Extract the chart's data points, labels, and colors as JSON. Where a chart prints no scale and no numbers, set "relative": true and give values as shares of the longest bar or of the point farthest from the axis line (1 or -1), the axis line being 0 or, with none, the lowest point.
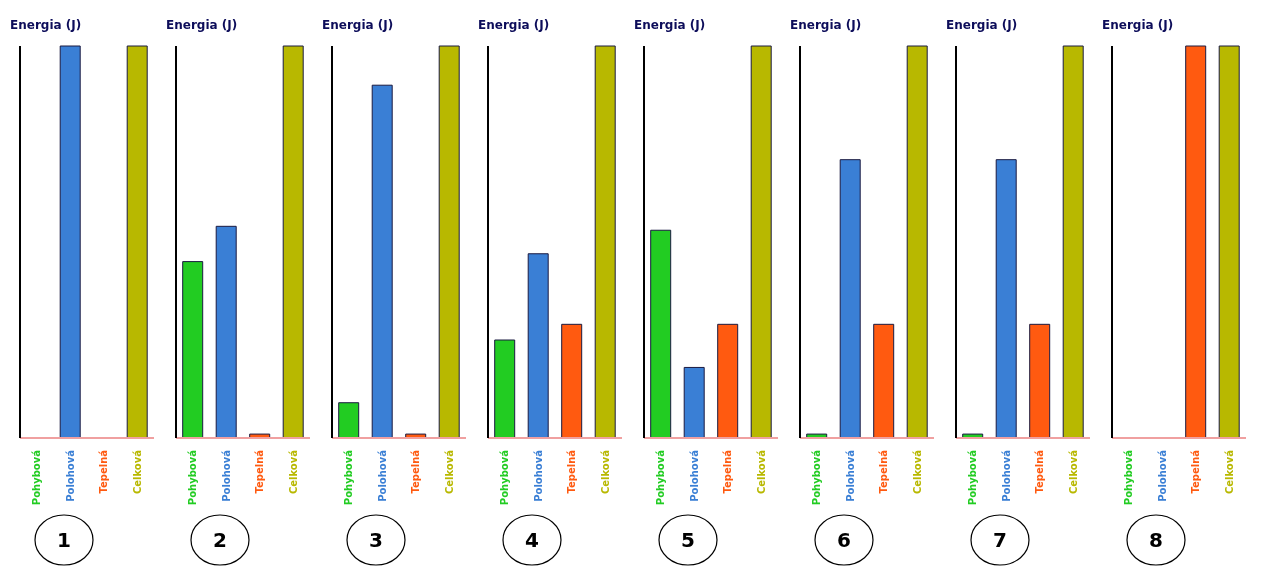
{
  "chart_data": [
    {
      "type": "bar",
      "title": "1",
      "ylabel": "Energia (J)",
      "relative": true,
      "categories": [
        "Pohybová",
        "Polohová",
        "Tepelná",
        "Celková"
      ],
      "values": [
        0,
        1,
        0,
        1
      ],
      "colors": [
        "#22cc22",
        "#3a7fd5",
        "#ff5a10",
        "#b8b800"
      ]
    },
    {
      "type": "bar",
      "title": "2",
      "ylabel": "Energia (J)",
      "relative": true,
      "categories": [
        "Pohybová",
        "Polohová",
        "Tepelná",
        "Celková"
      ],
      "values": [
        0.45,
        0.54,
        0.01,
        1
      ],
      "colors": [
        "#22cc22",
        "#3a7fd5",
        "#ff5a10",
        "#b8b800"
      ]
    },
    {
      "type": "bar",
      "title": "3",
      "ylabel": "Energia (J)",
      "relative": true,
      "categories": [
        "Pohybová",
        "Polohová",
        "Tepelná",
        "Celková"
      ],
      "values": [
        0.09,
        0.9,
        0.01,
        1
      ],
      "colors": [
        "#22cc22",
        "#3a7fd5",
        "#ff5a10",
        "#b8b800"
      ]
    },
    {
      "type": "bar",
      "title": "4",
      "ylabel": "Energia (J)",
      "relative": true,
      "categories": [
        "Pohybová",
        "Polohová",
        "Tepelná",
        "Celková"
      ],
      "values": [
        0.25,
        0.47,
        0.29,
        1
      ],
      "colors": [
        "#22cc22",
        "#3a7fd5",
        "#ff5a10",
        "#b8b800"
      ]
    },
    {
      "type": "bar",
      "title": "5",
      "ylabel": "Energia (J)",
      "relative": true,
      "categories": [
        "Pohybová",
        "Polohová",
        "Tepelná",
        "Celková"
      ],
      "values": [
        0.53,
        0.18,
        0.29,
        1
      ],
      "colors": [
        "#22cc22",
        "#3a7fd5",
        "#ff5a10",
        "#b8b800"
      ]
    },
    {
      "type": "bar",
      "title": "6",
      "ylabel": "Energia (J)",
      "relative": true,
      "categories": [
        "Pohybová",
        "Polohová",
        "Tepelná",
        "Celková"
      ],
      "values": [
        0.01,
        0.71,
        0.29,
        1
      ],
      "colors": [
        "#22cc22",
        "#3a7fd5",
        "#ff5a10",
        "#b8b800"
      ]
    },
    {
      "type": "bar",
      "title": "7",
      "ylabel": "Energia (J)",
      "relative": true,
      "categories": [
        "Pohybová",
        "Polohová",
        "Tepelná",
        "Celková"
      ],
      "values": [
        0.01,
        0.71,
        0.29,
        1
      ],
      "colors": [
        "#22cc22",
        "#3a7fd5",
        "#ff5a10",
        "#b8b800"
      ]
    },
    {
      "type": "bar",
      "title": "8",
      "ylabel": "Energia (J)",
      "relative": true,
      "categories": [
        "Pohybová",
        "Polohová",
        "Tepelná",
        "Celková"
      ],
      "values": [
        0,
        0,
        1,
        1
      ],
      "colors": [
        "#22cc22",
        "#3a7fd5",
        "#ff5a10",
        "#b8b800"
      ]
    }
  ]
}
